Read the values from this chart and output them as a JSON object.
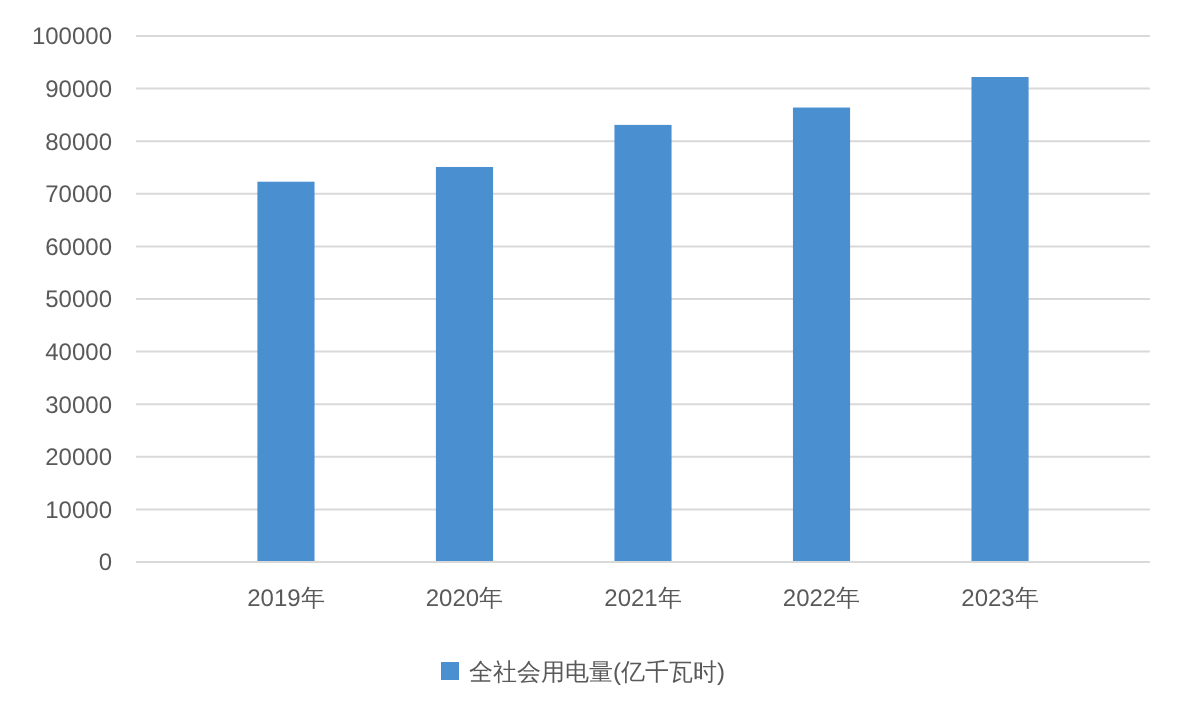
{
  "chart_data": {
    "type": "bar",
    "categories": [
      "2019年",
      "2020年",
      "2021年",
      "2022年",
      "2023年"
    ],
    "series": [
      {
        "name": "全社会用电量(亿千瓦时)",
        "color": "#4a8fd0",
        "values": [
          72300,
          75100,
          83100,
          86400,
          92200
        ]
      }
    ],
    "ylim": [
      0,
      100000
    ],
    "yticks": [
      0,
      10000,
      20000,
      30000,
      40000,
      50000,
      60000,
      70000,
      80000,
      90000,
      100000
    ],
    "grid": "y",
    "legend": "bottom"
  }
}
